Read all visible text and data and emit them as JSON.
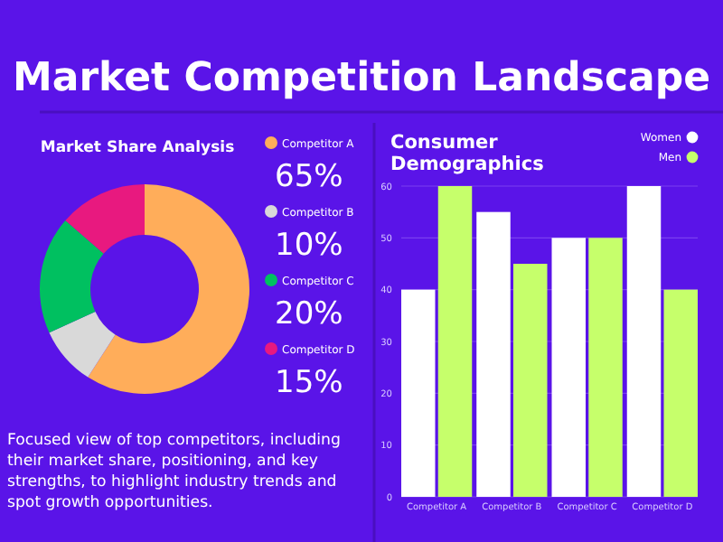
{
  "chart_data": [
    {
      "type": "other",
      "title": "Market Competition Landscape",
      "annotations": [
        "Focused view of top competitors, including their market share, positioning, and key strengths, to highlight industry trends and spot growth opportunities."
      ]
    },
    {
      "type": "donut",
      "title": "Market Share Analysis",
      "categories": [
        "Competitor A",
        "Competitor B",
        "Competitor C",
        "Competitor D"
      ],
      "values": [
        65,
        10,
        20,
        15
      ],
      "value_labels": [
        "65%",
        "10%",
        "20%",
        "15%"
      ],
      "colors": [
        "#ffad5a",
        "#d9d9d9",
        "#00c060",
        "#e8197f"
      ],
      "legend": "right"
    },
    {
      "type": "bar",
      "title": "Consumer Demographics",
      "categories": [
        "Competitor A",
        "Competitor B",
        "Competitor C",
        "Competitor D"
      ],
      "series": [
        {
          "name": "Women",
          "color": "#ffffff",
          "values": [
            40,
            55,
            50,
            60
          ]
        },
        {
          "name": "Men",
          "color": "#c6ff6b",
          "values": [
            60,
            45,
            50,
            40
          ]
        }
      ],
      "ylim": [
        0,
        60
      ],
      "yticks": [
        0,
        10,
        20,
        30,
        40,
        50,
        60
      ],
      "grid": "y",
      "legend": "top right"
    }
  ]
}
